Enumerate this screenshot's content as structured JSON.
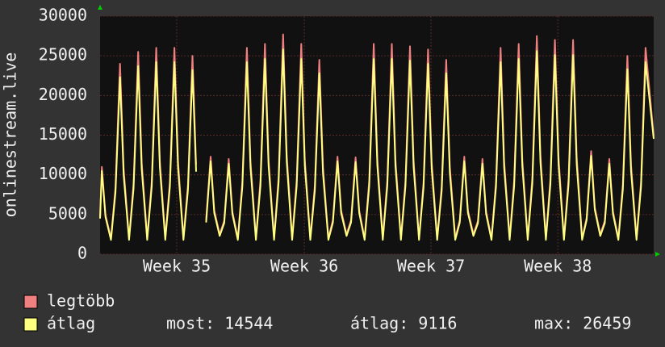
{
  "chart_data": {
    "type": "line",
    "y_label": "onlinestream.live",
    "x": [
      0,
      0.1,
      0.3,
      0.6,
      0.85,
      1.1,
      1.3,
      1.6,
      1.85,
      2.1,
      2.3,
      2.6,
      2.85,
      3.1,
      3.3,
      3.6,
      3.85,
      4.1,
      4.3,
      4.6,
      4.85,
      5.1,
      5.3,
      5.6,
      5.85,
      6.1,
      6.3,
      6.6,
      6.85,
      7.1,
      7.3,
      7.6,
      7.85,
      8.1,
      8.3,
      8.6,
      8.85,
      9.1,
      9.3,
      9.6,
      9.85,
      10.1,
      10.3,
      10.6,
      10.85,
      11.1,
      11.3,
      11.6,
      11.85,
      12.1,
      12.3,
      12.6,
      12.85,
      13.1,
      13.3,
      13.6,
      13.85,
      14.1,
      14.3,
      14.6,
      14.85,
      15.1,
      15.3,
      15.6,
      15.85,
      16.1,
      16.3,
      16.6,
      16.85,
      17.1,
      17.3,
      17.6,
      17.85,
      18.1,
      18.3,
      18.6,
      18.85,
      19.1,
      19.3,
      19.6,
      19.85,
      20.1,
      20.3,
      20.6,
      20.85,
      21.1,
      21.3,
      21.6,
      21.85,
      22.1,
      22.3,
      22.6,
      22.85,
      23.1,
      23.3,
      23.6,
      23.85,
      24.1,
      24.3,
      24.6,
      24.85,
      25.1,
      25.3,
      25.6,
      25.85,
      26.1,
      26.3,
      26.6,
      26.85,
      27.1,
      27.3,
      27.6,
      27.85,
      28.1,
      28.3,
      28.6,
      28.85,
      29.1,
      29.3,
      29.6,
      29.85,
      30.1,
      30.55
    ],
    "series": [
      {
        "name": "legtöbb",
        "color": "#f08080",
        "values": [
          4700,
          11000,
          4950,
          2000,
          8400,
          24000,
          10800,
          2000,
          8900,
          25500,
          11500,
          2000,
          9100,
          26000,
          11700,
          2000,
          9100,
          26000,
          11700,
          2000,
          8750,
          25000,
          11250,
          null,
          4300,
          12300,
          5500,
          2500,
          4200,
          12000,
          5400,
          2000,
          9100,
          26000,
          11700,
          2000,
          9300,
          26500,
          11900,
          2000,
          9700,
          27700,
          12500,
          2000,
          9300,
          26500,
          11900,
          2000,
          8600,
          24500,
          11000,
          2000,
          4300,
          12300,
          5500,
          2500,
          4300,
          12200,
          5500,
          2000,
          9300,
          26500,
          11900,
          2000,
          9300,
          26500,
          11900,
          2000,
          9200,
          26200,
          11800,
          2000,
          9000,
          25800,
          11600,
          2000,
          8600,
          24500,
          11000,
          2000,
          4300,
          12300,
          5500,
          2500,
          4200,
          12000,
          5400,
          2000,
          9100,
          26000,
          11700,
          2000,
          9300,
          26500,
          11900,
          2000,
          9600,
          27500,
          12400,
          2000,
          9500,
          27000,
          12200,
          2000,
          9500,
          27000,
          12200,
          2000,
          4600,
          13000,
          5900,
          2500,
          4200,
          12000,
          5400,
          2000,
          8800,
          25000,
          11300,
          2000,
          9100,
          26000,
          14900
        ]
      },
      {
        "name": "átlag",
        "color": "#ffff80",
        "values": [
          4500,
          10500,
          4700,
          1800,
          7800,
          22300,
          10000,
          1800,
          8300,
          23700,
          10700,
          1800,
          8500,
          24200,
          10900,
          1800,
          8500,
          24200,
          10900,
          1800,
          8100,
          23200,
          10400,
          null,
          4000,
          11700,
          5200,
          2300,
          3900,
          11400,
          5100,
          1800,
          8500,
          24200,
          10900,
          1800,
          8600,
          24600,
          11100,
          1800,
          9000,
          25800,
          11600,
          1800,
          8600,
          24600,
          11100,
          1800,
          8000,
          22800,
          10200,
          1800,
          4000,
          11700,
          5200,
          2300,
          4000,
          11600,
          5200,
          1800,
          8600,
          24600,
          11100,
          1800,
          8600,
          24600,
          11100,
          1800,
          8600,
          24400,
          11000,
          1800,
          8400,
          24000,
          10800,
          1800,
          8000,
          22800,
          10200,
          1800,
          4000,
          11700,
          5200,
          2300,
          3900,
          11400,
          5100,
          1800,
          8500,
          24200,
          10900,
          1800,
          8600,
          24600,
          11100,
          1800,
          8900,
          25600,
          11500,
          1800,
          8800,
          25100,
          11300,
          1800,
          8800,
          25100,
          11300,
          1800,
          4300,
          12400,
          5600,
          2300,
          3900,
          11400,
          5100,
          1800,
          8200,
          23300,
          10500,
          1800,
          8500,
          24200,
          14544
        ]
      }
    ],
    "stats": [
      "most: 14544",
      "átlag: 9116",
      "max: 26459"
    ],
    "xlim": [
      0,
      30.55
    ],
    "xticks": [
      {
        "value": 4.23,
        "label": "Week 35"
      },
      {
        "value": 11.27,
        "label": "Week 36"
      },
      {
        "value": 18.26,
        "label": "Week 37"
      },
      {
        "value": 25.26,
        "label": "Week 38"
      }
    ],
    "ylim": [
      0,
      30000
    ],
    "yticks": [
      0,
      5000,
      10000,
      15000,
      20000,
      25000,
      30000
    ],
    "grid": true
  }
}
